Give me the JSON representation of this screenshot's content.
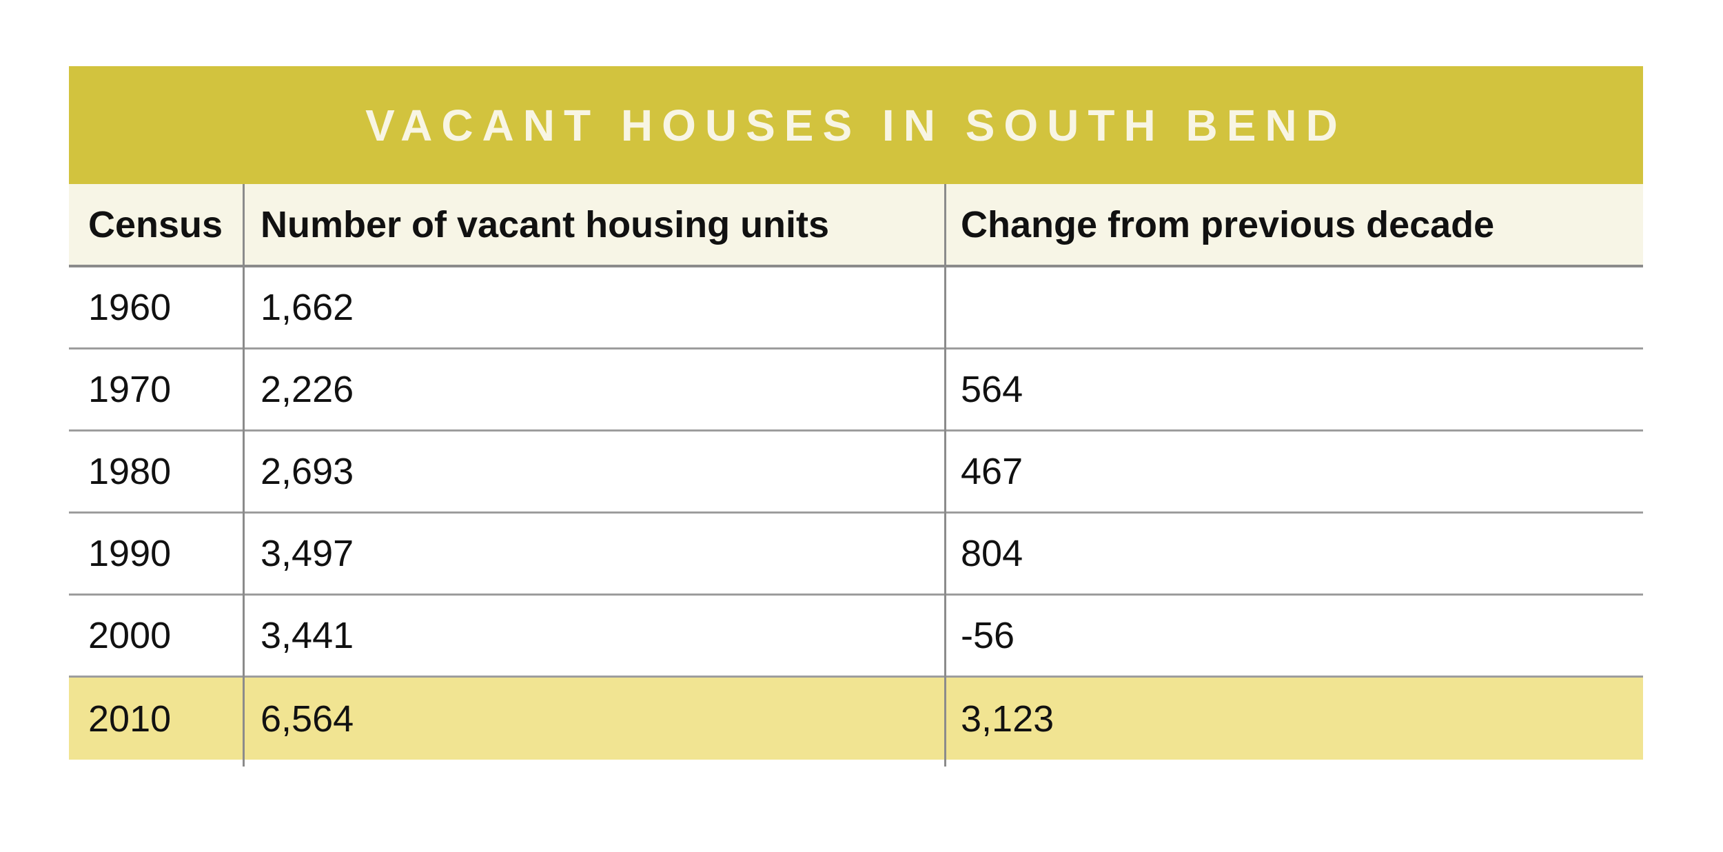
{
  "title": "VACANT HOUSES IN SOUTH BEND",
  "colors": {
    "title_bar_gold": "#d2c33e",
    "title_text_cream": "#f8f5e4",
    "header_bg_cream": "#f7f5e6",
    "highlight_row_yellow": "#f1e492",
    "border_gray": "#8b8b8b",
    "text_black": "#111111"
  },
  "table": {
    "columns": {
      "census": "Census",
      "units": "Number of vacant housing units",
      "change": "Change from previous decade"
    },
    "rows": [
      {
        "census": "1960",
        "units": "1,662",
        "change": ""
      },
      {
        "census": "1970",
        "units": "2,226",
        "change": "564"
      },
      {
        "census": "1980",
        "units": "2,693",
        "change": "467"
      },
      {
        "census": "1990",
        "units": "3,497",
        "change": "804"
      },
      {
        "census": "2000",
        "units": "3,441",
        "change": "-56"
      },
      {
        "census": "2010",
        "units": "6,564",
        "change": "3,123"
      }
    ]
  },
  "chart_data": {
    "type": "table",
    "title": "VACANT HOUSES IN SOUTH BEND",
    "columns": [
      "Census",
      "Number of vacant housing units",
      "Change from previous decade"
    ],
    "rows": [
      [
        "1960",
        1662,
        null
      ],
      [
        "1970",
        2226,
        564
      ],
      [
        "1980",
        2693,
        467
      ],
      [
        "1990",
        3497,
        804
      ],
      [
        "2000",
        3441,
        -56
      ],
      [
        "2010",
        6564,
        3123
      ]
    ],
    "highlighted_row": "2010",
    "layout": "title banner on top, header row, grid lines gray, last row highlighted yellow"
  }
}
